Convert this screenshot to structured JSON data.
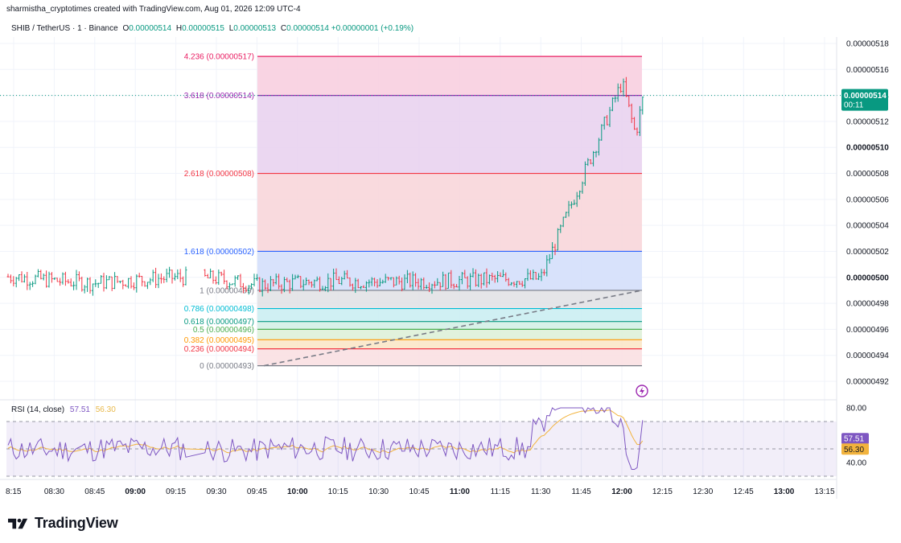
{
  "header": {
    "credit": "sharmistha_cryptotimes created with TradingView.com, Aug 01, 2026 12:09 UTC-4"
  },
  "legend": {
    "symbol": "SHIB / TetherUS · 1 · Binance",
    "open_label": "O",
    "open": "0.00000514",
    "high_label": "H",
    "high": "0.00000515",
    "low_label": "L",
    "low": "0.00000513",
    "close_label": "C",
    "close": "0.00000514",
    "change": "+0.00000001 (+0.19%)"
  },
  "price_scale": {
    "labels": [
      "0.00000518",
      "0.00000516",
      "0.00000514",
      "0.00000512",
      "0.00000510",
      "0.00000508",
      "0.00000506",
      "0.00000504",
      "0.00000502",
      "0.00000500",
      "0.00000498",
      "0.00000496",
      "0.00000494",
      "0.00000492"
    ],
    "bold_labels": [
      "0.00000510",
      "0.00000500"
    ],
    "current_price": "0.00000514",
    "countdown": "00:11"
  },
  "fib_levels": [
    {
      "label": "4.236 (0.00000517)",
      "price": 5.17,
      "color": "#e91e63",
      "fill": "#f8cfe0"
    },
    {
      "label": "3.618 (0.00000514)",
      "price": 5.14,
      "color": "#9c27b0",
      "fill": "#e9d3f0"
    },
    {
      "label": "2.618 (0.00000508)",
      "price": 5.08,
      "color": "#f23645",
      "fill": "#f8d6da"
    },
    {
      "label": "1.618 (0.00000502)",
      "price": 5.02,
      "color": "#2962ff",
      "fill": "#d4dffb"
    },
    {
      "label": "1 (0.00000499)",
      "price": 4.99,
      "color": "#787b86",
      "fill": "#e2e2e6"
    },
    {
      "label": "0.786 (0.00000498)",
      "price": 4.976,
      "color": "#00bcd4",
      "fill": "#cbeef2"
    },
    {
      "label": "0.618 (0.00000497)",
      "price": 4.966,
      "color": "#089981",
      "fill": "#d4efe6"
    },
    {
      "label": "0.5 (0.00000496)",
      "price": 4.96,
      "color": "#4caf50",
      "fill": "#def1d8"
    },
    {
      "label": "0.382 (0.00000495)",
      "price": 4.952,
      "color": "#ff9800",
      "fill": "#fbe7c8"
    },
    {
      "label": "0.236 (0.00000494)",
      "price": 4.945,
      "color": "#f23645",
      "fill": "#fae0e2"
    },
    {
      "label": "0 (0.00000493)",
      "price": 4.932,
      "color": "#787b86",
      "fill": "#f6d3d8"
    }
  ],
  "rsi": {
    "title": "RSI (14, close)",
    "rsi_value": "57.51",
    "ma_value": "56.30",
    "labels": [
      "80.00",
      "40.00"
    ],
    "rsi_color": "#7e57c2",
    "ma_color": "#f2b33d"
  },
  "time_axis": {
    "labels": [
      "8:15",
      "08:30",
      "08:45",
      "09:00",
      "09:15",
      "09:30",
      "09:45",
      "10:00",
      "10:15",
      "10:30",
      "10:45",
      "11:00",
      "11:15",
      "11:30",
      "11:45",
      "12:00",
      "12:15",
      "12:30",
      "12:45",
      "13:00",
      "13:15"
    ],
    "bold_labels": [
      "09:00",
      "10:00",
      "11:00",
      "12:00",
      "13:00"
    ]
  },
  "brand": {
    "name": "TradingView"
  },
  "chart_data": {
    "type": "line",
    "title": "SHIB / TetherUS · 1 · Binance",
    "xlabel": "",
    "ylabel": "",
    "x": [
      "8:15",
      "08:30",
      "08:45",
      "09:00",
      "09:15",
      "09:30",
      "09:45",
      "10:00",
      "10:15",
      "10:30",
      "10:45",
      "11:00",
      "11:15",
      "11:30",
      "11:45",
      "12:00",
      "12:05",
      "12:08"
    ],
    "series": [
      {
        "values": [
          5.0005,
          4.9975,
          4.9955,
          4.998,
          5.0,
          4.999,
          4.994,
          4.996,
          4.9975,
          4.9965,
          4.997,
          4.9975,
          4.9985,
          4.999,
          5.075,
          5.15,
          5.11,
          5.14
        ]
      }
    ],
    "ylim": [
      4.91,
      5.19
    ],
    "y_unit": "1e-6 USDT",
    "grid": true
  }
}
